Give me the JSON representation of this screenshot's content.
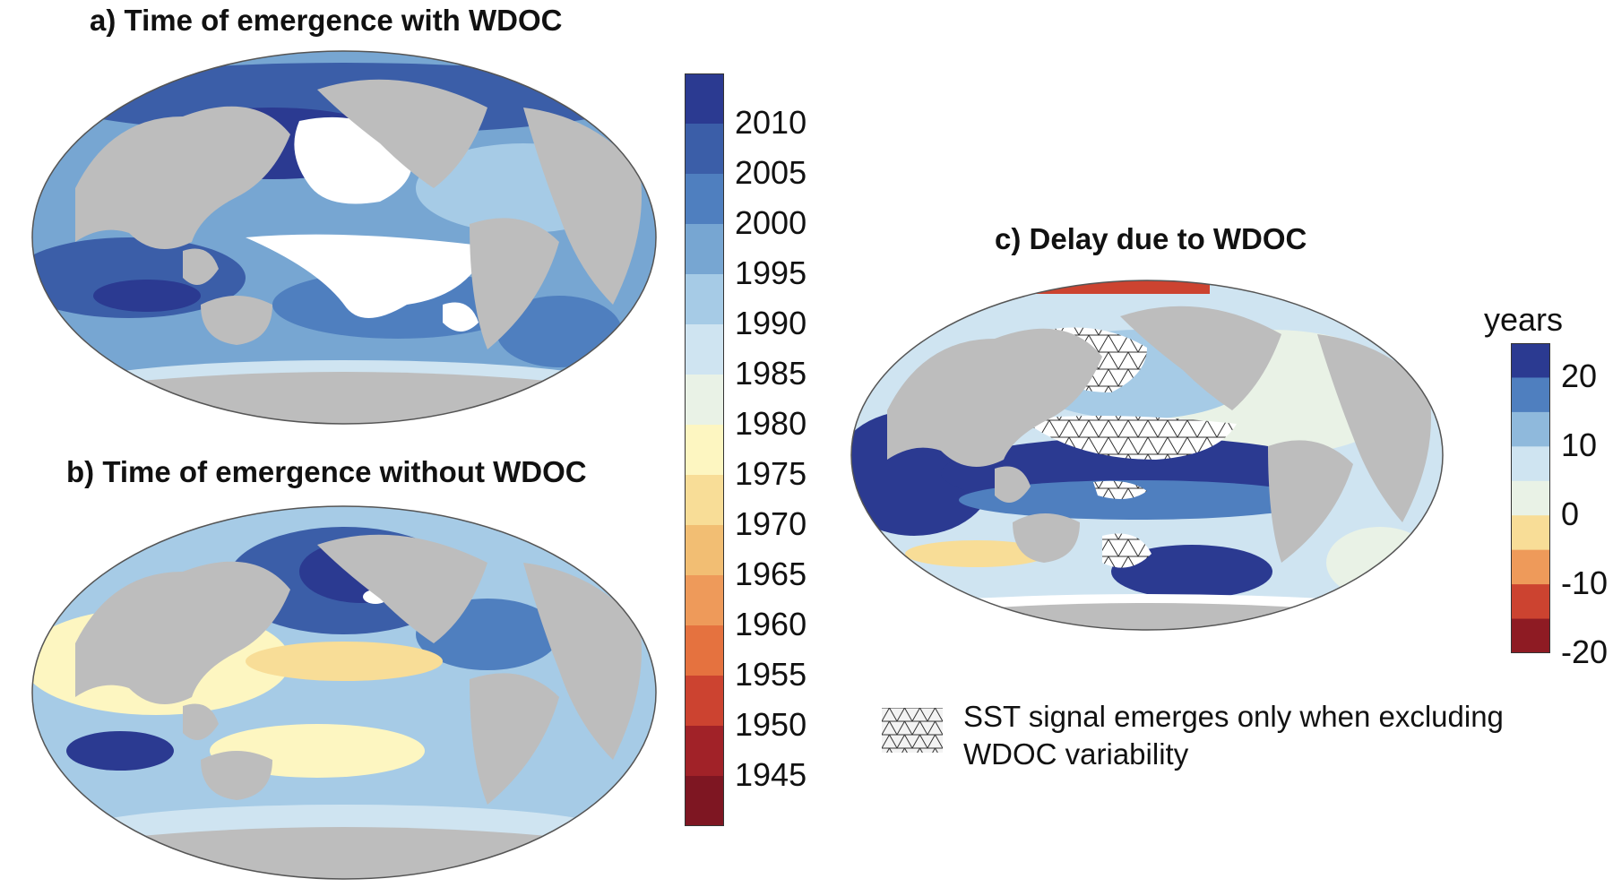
{
  "panels": {
    "a": {
      "title": "a) Time of emergence with WDOC"
    },
    "b": {
      "title": "b) Time of emergence without WDOC"
    },
    "c": {
      "title": "c) Delay due to WDOC"
    }
  },
  "colorbar_year": {
    "labels": [
      "2010",
      "2005",
      "2000",
      "1995",
      "1990",
      "1985",
      "1980",
      "1975",
      "1970",
      "1965",
      "1960",
      "1955",
      "1950",
      "1945"
    ],
    "colors": [
      "#2b3a91",
      "#3b5ea8",
      "#4f7fbf",
      "#77a6d2",
      "#a6cbe6",
      "#cfe4f1",
      "#e9f2e6",
      "#fdf6c1",
      "#f8dd97",
      "#f2be73",
      "#ee9a5a",
      "#e5723f",
      "#cc4330",
      "#a12228",
      "#7e1622"
    ]
  },
  "colorbar_delay": {
    "title": "years",
    "labels": [
      "20",
      "10",
      "0",
      "-10",
      "-20"
    ],
    "colors": [
      "#2b3a91",
      "#4f7fbf",
      "#8fb9dc",
      "#cfe4f1",
      "#e9f2e6",
      "#f8dd97",
      "#ee9a5a",
      "#cc4330",
      "#8e1b23"
    ]
  },
  "legend": {
    "line1": "SST signal emerges only when excluding",
    "line2": "WDOC variability"
  },
  "palette": {
    "land": "#bdbdbd",
    "ocean_blue": "#4f7fbf",
    "deep_blue": "#2b3a91",
    "light_blue": "#a6cbe6",
    "pale_green": "#e9f2e6",
    "pale_yellow": "#fdf6c1",
    "orange": "#ee9a5a",
    "red": "#cc4330"
  }
}
